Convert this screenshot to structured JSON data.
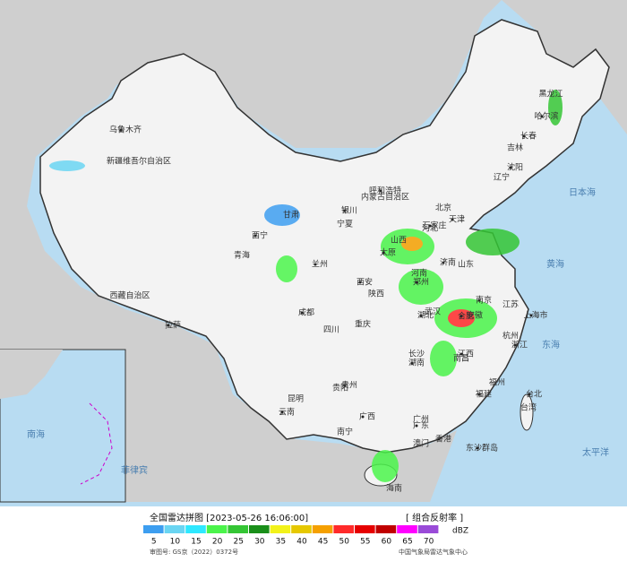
{
  "map": {
    "labels": [
      "新疆维吾尔自治区",
      "乌鲁木齐",
      "西藏自治区",
      "拉萨",
      "青海",
      "西宁",
      "甘肃",
      "兰州",
      "宁夏",
      "银川",
      "内蒙古自治区",
      "呼和浩特",
      "黑龙江",
      "哈尔滨",
      "吉林",
      "长春",
      "辽宁",
      "沈阳",
      "北京",
      "天津",
      "河北",
      "石家庄",
      "山西",
      "太原",
      "陕西",
      "西安",
      "四川",
      "成都",
      "重庆",
      "云南",
      "昆明",
      "贵州",
      "贵阳",
      "广西",
      "南宁",
      "广东",
      "广州",
      "湖南",
      "长沙",
      "湖北",
      "武汉",
      "江西",
      "南昌",
      "福建",
      "福州",
      "浙江",
      "杭州",
      "上海市",
      "江苏",
      "南京",
      "安徽",
      "合肥",
      "山东",
      "济南",
      "河南",
      "郑州",
      "台湾",
      "台北",
      "海南",
      "香港",
      "澳门",
      "东沙群岛",
      "日本海",
      "黄海",
      "东海",
      "太平洋",
      "南海",
      "菲律宾"
    ]
  },
  "legend": {
    "title": "全国雷达拼图 [2023-05-26 16:06:00]",
    "product": "[ 组合反射率 ]",
    "unit": "dBZ",
    "items": [
      {
        "value": 5,
        "color": "#3d9ef0"
      },
      {
        "value": 10,
        "color": "#6ad5f2"
      },
      {
        "value": 15,
        "color": "#2ee8ff"
      },
      {
        "value": 20,
        "color": "#4bf44b"
      },
      {
        "value": 25,
        "color": "#35c635"
      },
      {
        "value": 30,
        "color": "#1a8f1a"
      },
      {
        "value": 35,
        "color": "#f2f21a"
      },
      {
        "value": 40,
        "color": "#e6c800"
      },
      {
        "value": 45,
        "color": "#f5a000"
      },
      {
        "value": 50,
        "color": "#ff2a2a"
      },
      {
        "value": 55,
        "color": "#e60000"
      },
      {
        "value": 60,
        "color": "#c00000"
      },
      {
        "value": 65,
        "color": "#ff00ff"
      },
      {
        "value": 70,
        "color": "#9a4bd8"
      }
    ],
    "approval": "审图号: GS京（2022）0372号",
    "source": "中国气象局雷达气象中心"
  }
}
